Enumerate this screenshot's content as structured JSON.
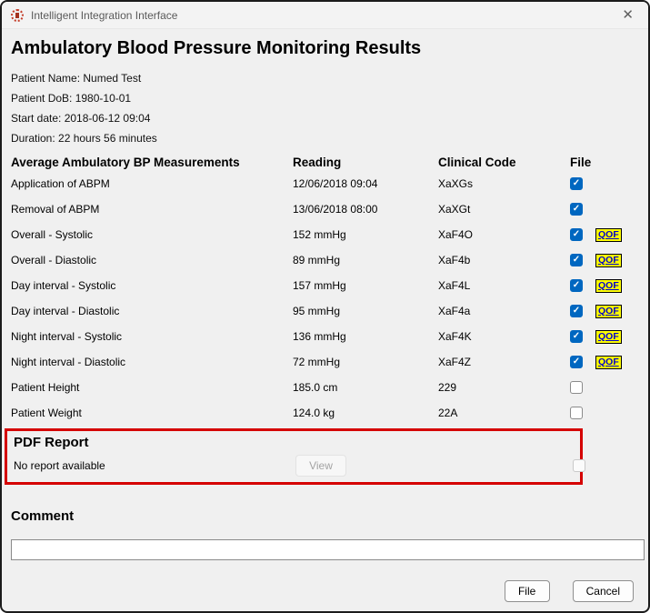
{
  "window": {
    "title": "Intelligent Integration Interface",
    "close_glyph": "✕"
  },
  "heading": "Ambulatory Blood Pressure Monitoring Results",
  "patient_info": {
    "lines": [
      "Patient Name: Numed Test",
      "Patient DoB: 1980-10-01",
      "Start date: 2018-06-12 09:04",
      "Duration: 22 hours 56 minutes"
    ]
  },
  "table": {
    "headers": [
      "Average Ambulatory BP Measurements",
      "Reading",
      "Clinical Code",
      "File"
    ],
    "qof_label": "QOF",
    "rows": [
      {
        "label": "Application of ABPM",
        "reading": "12/06/2018 09:04",
        "code": "XaXGs",
        "checked": true,
        "qof": false
      },
      {
        "label": "Removal of ABPM",
        "reading": "13/06/2018 08:00",
        "code": "XaXGt",
        "checked": true,
        "qof": false
      },
      {
        "label": "Overall - Systolic",
        "reading": "152 mmHg",
        "code": "XaF4O",
        "checked": true,
        "qof": true
      },
      {
        "label": "Overall - Diastolic",
        "reading": "89 mmHg",
        "code": "XaF4b",
        "checked": true,
        "qof": true
      },
      {
        "label": "Day interval - Systolic",
        "reading": "157 mmHg",
        "code": "XaF4L",
        "checked": true,
        "qof": true
      },
      {
        "label": "Day interval - Diastolic",
        "reading": "95 mmHg",
        "code": "XaF4a",
        "checked": true,
        "qof": true
      },
      {
        "label": "Night interval - Systolic",
        "reading": "136 mmHg",
        "code": "XaF4K",
        "checked": true,
        "qof": true
      },
      {
        "label": "Night interval - Diastolic",
        "reading": "72 mmHg",
        "code": "XaF4Z",
        "checked": true,
        "qof": true
      },
      {
        "label": "Patient Height",
        "reading": "185.0 cm",
        "code": "229",
        "checked": false,
        "qof": false
      },
      {
        "label": "Patient Weight",
        "reading": "124.0 kg",
        "code": "22A",
        "checked": false,
        "qof": false
      }
    ]
  },
  "pdf_report": {
    "heading": "PDF Report",
    "status": "No report available",
    "view_label": "View",
    "checkbox_checked": false
  },
  "comment": {
    "heading": "Comment",
    "value": ""
  },
  "actions": {
    "file_label": "File",
    "cancel_label": "Cancel"
  },
  "colors": {
    "accent_checkbox": "#0067c0",
    "qof_background": "#ffff00",
    "qof_text": "#0000cc",
    "pdf_box_border": "#d50000",
    "window_background": "#f0f0f0"
  }
}
